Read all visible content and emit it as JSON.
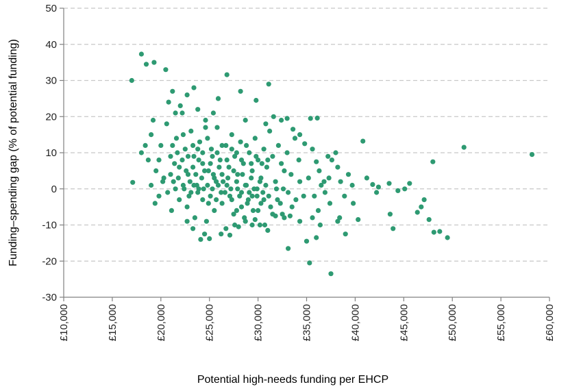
{
  "chart_data": {
    "type": "scatter",
    "xlabel": "Potential high-needs funding per EHCP",
    "ylabel": "Funding–spending gap (% of potential funding)",
    "xlim": [
      10000,
      60000
    ],
    "ylim": [
      -30,
      50
    ],
    "x_ticks": [
      10000,
      15000,
      20000,
      25000,
      30000,
      35000,
      40000,
      45000,
      50000,
      55000,
      60000
    ],
    "x_tick_labels": [
      "£10,000",
      "£15,000",
      "£20,000",
      "£25,000",
      "£30,000",
      "£35,000",
      "£40,000",
      "£45,000",
      "£50,000",
      "£55,000",
      "£60,000"
    ],
    "y_ticks": [
      -30,
      -20,
      -10,
      0,
      10,
      20,
      30,
      40,
      50
    ],
    "y_tick_labels": [
      "-30",
      "-20",
      "-10",
      "0",
      "10",
      "20",
      "30",
      "40",
      "50"
    ],
    "grid": "horizontal dashed",
    "marker_color": "#2e9a72",
    "points": [
      [
        17000,
        30
      ],
      [
        18000,
        37.3
      ],
      [
        18500,
        34.5
      ],
      [
        19300,
        35
      ],
      [
        20500,
        33
      ],
      [
        21200,
        27
      ],
      [
        20800,
        24
      ],
      [
        18000,
        10
      ],
      [
        18400,
        12
      ],
      [
        18700,
        8
      ],
      [
        19000,
        15
      ],
      [
        19200,
        19
      ],
      [
        19500,
        5
      ],
      [
        19800,
        8
      ],
      [
        20000,
        12
      ],
      [
        20300,
        3
      ],
      [
        20600,
        18
      ],
      [
        21000,
        9
      ],
      [
        21300,
        2
      ],
      [
        21600,
        14
      ],
      [
        21900,
        6
      ],
      [
        22200,
        21
      ],
      [
        22500,
        11
      ],
      [
        22800,
        4
      ],
      [
        23100,
        16
      ],
      [
        23400,
        9
      ],
      [
        23700,
        1
      ],
      [
        24000,
        13
      ],
      [
        24300,
        7
      ],
      [
        24600,
        19
      ],
      [
        24900,
        5
      ],
      [
        25200,
        11
      ],
      [
        25500,
        3
      ],
      [
        25800,
        17
      ],
      [
        26100,
        8
      ],
      [
        26400,
        2
      ],
      [
        26700,
        12
      ],
      [
        27000,
        6
      ],
      [
        27300,
        15
      ],
      [
        27600,
        9
      ],
      [
        27900,
        4
      ],
      [
        28200,
        13
      ],
      [
        28500,
        7
      ],
      [
        28800,
        1
      ],
      [
        29100,
        10
      ],
      [
        29400,
        5
      ],
      [
        29700,
        14
      ],
      [
        30000,
        8
      ],
      [
        30300,
        3
      ],
      [
        30600,
        11
      ],
      [
        30900,
        6
      ],
      [
        31200,
        16
      ],
      [
        31500,
        9
      ],
      [
        31800,
        2
      ],
      [
        32100,
        12
      ],
      [
        32400,
        7
      ],
      [
        32700,
        5
      ],
      [
        33000,
        10
      ],
      [
        33400,
        4
      ],
      [
        33800,
        14
      ],
      [
        34200,
        8
      ],
      [
        19000,
        1
      ],
      [
        19400,
        -4
      ],
      [
        19800,
        -2
      ],
      [
        20200,
        2
      ],
      [
        20700,
        -1
      ],
      [
        21100,
        -6
      ],
      [
        21500,
        0
      ],
      [
        21900,
        -3
      ],
      [
        22300,
        1
      ],
      [
        22700,
        -5
      ],
      [
        23100,
        -1
      ],
      [
        23500,
        -8
      ],
      [
        23900,
        0
      ],
      [
        24300,
        -3
      ],
      [
        24700,
        -9
      ],
      [
        25100,
        -2
      ],
      [
        25500,
        -6
      ],
      [
        25900,
        1
      ],
      [
        26300,
        -4
      ],
      [
        26700,
        -11
      ],
      [
        27100,
        -2
      ],
      [
        27500,
        -7
      ],
      [
        27900,
        0
      ],
      [
        28300,
        -5
      ],
      [
        28700,
        -9
      ],
      [
        29100,
        -1
      ],
      [
        29500,
        -6
      ],
      [
        29900,
        0
      ],
      [
        30300,
        -4
      ],
      [
        30700,
        -10
      ],
      [
        31100,
        -2
      ],
      [
        31500,
        -7
      ],
      [
        31900,
        0
      ],
      [
        32300,
        -4
      ],
      [
        32700,
        -8
      ],
      [
        33100,
        -1
      ],
      [
        33500,
        -5
      ],
      [
        33900,
        -3
      ],
      [
        34300,
        2
      ],
      [
        34700,
        -2
      ],
      [
        21000,
        4
      ],
      [
        21400,
        7
      ],
      [
        21800,
        3
      ],
      [
        22200,
        8
      ],
      [
        22600,
        5
      ],
      [
        23000,
        2
      ],
      [
        23300,
        6
      ],
      [
        23600,
        4
      ],
      [
        23900,
        8
      ],
      [
        24200,
        3
      ],
      [
        24500,
        5
      ],
      [
        24800,
        1
      ],
      [
        25100,
        7
      ],
      [
        25400,
        4
      ],
      [
        25700,
        2
      ],
      [
        26000,
        6
      ],
      [
        26300,
        4
      ],
      [
        26600,
        -1
      ],
      [
        26900,
        3
      ],
      [
        27200,
        0
      ],
      [
        27500,
        5
      ],
      [
        27800,
        2
      ],
      [
        28100,
        -2
      ],
      [
        28400,
        4
      ],
      [
        28700,
        1
      ],
      [
        29000,
        -3
      ],
      [
        29300,
        3
      ],
      [
        29600,
        0
      ],
      [
        29900,
        -2
      ],
      [
        30200,
        2
      ],
      [
        30500,
        -1
      ],
      [
        30800,
        1
      ],
      [
        22400,
        0
      ],
      [
        22900,
        -2
      ],
      [
        23400,
        1
      ],
      [
        23800,
        -1
      ],
      [
        24400,
        0
      ],
      [
        24900,
        -4
      ],
      [
        25300,
        0
      ],
      [
        25700,
        -3
      ],
      [
        26200,
        -1
      ],
      [
        26800,
        1
      ],
      [
        27300,
        -3
      ],
      [
        27800,
        -6
      ],
      [
        28300,
        -1
      ],
      [
        28900,
        -4
      ],
      [
        29400,
        -2
      ],
      [
        30000,
        -6
      ],
      [
        30600,
        -3
      ],
      [
        31300,
        -5
      ],
      [
        32000,
        -3
      ],
      [
        32600,
        0
      ],
      [
        21200,
        12
      ],
      [
        21700,
        10
      ],
      [
        22300,
        15
      ],
      [
        22800,
        9
      ],
      [
        23300,
        12
      ],
      [
        23800,
        11
      ],
      [
        24300,
        10
      ],
      [
        24800,
        14
      ],
      [
        25300,
        9
      ],
      [
        25800,
        10
      ],
      [
        26300,
        12
      ],
      [
        26800,
        8
      ],
      [
        27300,
        11
      ],
      [
        27800,
        10
      ],
      [
        28300,
        8
      ],
      [
        28800,
        12
      ],
      [
        29300,
        7
      ],
      [
        29800,
        9
      ],
      [
        30400,
        7
      ],
      [
        31000,
        8
      ],
      [
        21500,
        21
      ],
      [
        22000,
        23
      ],
      [
        22700,
        26
      ],
      [
        23400,
        28
      ],
      [
        23800,
        22
      ],
      [
        24600,
        17
      ],
      [
        25400,
        21
      ],
      [
        25900,
        25
      ],
      [
        26800,
        31.6
      ],
      [
        28200,
        27
      ],
      [
        28700,
        19
      ],
      [
        29800,
        24.5
      ],
      [
        30800,
        18
      ],
      [
        31100,
        29
      ],
      [
        31600,
        20
      ],
      [
        32400,
        19
      ],
      [
        33000,
        19.5
      ],
      [
        33600,
        16.5
      ],
      [
        34300,
        15
      ],
      [
        35400,
        19.5
      ],
      [
        36100,
        19.6
      ],
      [
        34800,
        12.5
      ],
      [
        35600,
        11
      ],
      [
        36000,
        7.5
      ],
      [
        36300,
        5
      ],
      [
        36500,
        1
      ],
      [
        36900,
        -1
      ],
      [
        37200,
        9
      ],
      [
        37600,
        8
      ],
      [
        38000,
        10
      ],
      [
        38200,
        6
      ],
      [
        37300,
        3
      ],
      [
        38500,
        2
      ],
      [
        38900,
        -2
      ],
      [
        39300,
        4
      ],
      [
        39700,
        1
      ],
      [
        35200,
        3
      ],
      [
        35800,
        -2
      ],
      [
        36200,
        -6
      ],
      [
        36800,
        2
      ],
      [
        37400,
        -4
      ],
      [
        35600,
        -8
      ],
      [
        36400,
        -10
      ],
      [
        35000,
        -14.5
      ],
      [
        35300,
        -20.5
      ],
      [
        36000,
        -13.5
      ],
      [
        33100,
        -16.5
      ],
      [
        37500,
        -23.5
      ],
      [
        38200,
        -9
      ],
      [
        38400,
        -8
      ],
      [
        39000,
        -12.5
      ],
      [
        39800,
        -4
      ],
      [
        40300,
        -8.5
      ],
      [
        40800,
        13.2
      ],
      [
        41200,
        3
      ],
      [
        41800,
        1.2
      ],
      [
        42200,
        -1
      ],
      [
        42400,
        0.5
      ],
      [
        43500,
        1.5
      ],
      [
        44400,
        -0.5
      ],
      [
        45100,
        0
      ],
      [
        45600,
        1.5
      ],
      [
        46400,
        -6.5
      ],
      [
        46800,
        -5
      ],
      [
        47100,
        -3
      ],
      [
        43600,
        -7
      ],
      [
        43900,
        -11
      ],
      [
        47600,
        -8.5
      ],
      [
        48100,
        -12
      ],
      [
        48700,
        -11.8
      ],
      [
        49500,
        -13.5
      ],
      [
        48000,
        7.5
      ],
      [
        51200,
        11.5
      ],
      [
        58200,
        9.5
      ],
      [
        17100,
        1.8
      ],
      [
        24100,
        -14
      ],
      [
        25000,
        -13.8
      ],
      [
        26200,
        -12.5
      ],
      [
        27100,
        -12.8
      ],
      [
        28000,
        -10.5
      ],
      [
        29400,
        -10
      ],
      [
        30200,
        -10
      ],
      [
        31000,
        -11.5
      ],
      [
        22700,
        -9
      ],
      [
        23300,
        -11
      ],
      [
        24500,
        -12.5
      ],
      [
        27600,
        -10
      ],
      [
        28600,
        -8
      ],
      [
        29700,
        -8.5
      ],
      [
        31800,
        -7.5
      ],
      [
        32500,
        -7
      ],
      [
        33300,
        -7.5
      ],
      [
        34300,
        -9
      ]
    ]
  }
}
